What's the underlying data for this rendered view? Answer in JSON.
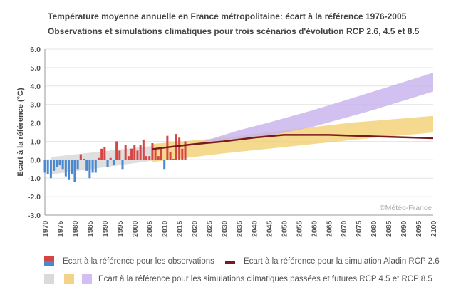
{
  "title": "Température moyenne annuelle en France métropolitaine: écart à la référence 1976-2005",
  "subtitle": "Observations et simulations climatiques pour trois scénarios d'évolution RCP 2.6, 4.5 et 8.5",
  "watermark": "©Météo-France",
  "legend": {
    "observations": "Ecart à la référence pour les observations",
    "aladin": "Ecart à la référence pour la simulation Aladin RCP 2.6",
    "simulations": "Ecart à la référence pour les simulations climatiques passées et futures RCP 4.5 et RCP 8.5"
  },
  "colors": {
    "positive": "#d64545",
    "negative": "#4a88d0",
    "grey_band": "#d9d9d9",
    "rcp45": "#f3cf73",
    "rcp85": "#c7b0ee",
    "line": "#7b1a1a"
  },
  "chart_data": {
    "type": "bar+line+area",
    "ylabel": "Ecart à la référence (°C)",
    "xlabel": "",
    "xlim": [
      1970,
      2100
    ],
    "ylim": [
      -3.0,
      6.0
    ],
    "yticks": [
      "6.0",
      "5.0",
      "4.0",
      "3.0",
      "2.0",
      "1.0",
      "0.0",
      "-1.0",
      "-2.0",
      "-3.0"
    ],
    "xticks": [
      "1970",
      "1975",
      "1980",
      "1985",
      "1990",
      "1995",
      "2000",
      "2005",
      "2010",
      "2015",
      "2020",
      "2025",
      "2030",
      "2035",
      "2040",
      "2045",
      "2050",
      "2055",
      "2060",
      "2065",
      "2070",
      "2075",
      "2080",
      "2085",
      "2090",
      "2095",
      "2100"
    ],
    "grid": true,
    "observations": {
      "years": [
        1970,
        1971,
        1972,
        1973,
        1974,
        1975,
        1976,
        1977,
        1978,
        1979,
        1980,
        1981,
        1982,
        1983,
        1984,
        1985,
        1986,
        1987,
        1988,
        1989,
        1990,
        1991,
        1992,
        1993,
        1994,
        1995,
        1996,
        1997,
        1998,
        1999,
        2000,
        2001,
        2002,
        2003,
        2004,
        2005,
        2006,
        2007,
        2008,
        2009,
        2010,
        2011,
        2012,
        2013,
        2014,
        2015,
        2016,
        2017
      ],
      "values": [
        -0.7,
        -0.8,
        -1.0,
        -0.6,
        -0.4,
        -0.3,
        -0.5,
        -0.9,
        -1.1,
        -0.8,
        -1.2,
        -0.5,
        0.3,
        0.05,
        -0.6,
        -1.0,
        -0.7,
        -0.7,
        0.1,
        0.6,
        0.7,
        -0.4,
        0.1,
        -0.3,
        1.0,
        0.5,
        -0.5,
        0.8,
        0.2,
        0.6,
        0.8,
        0.5,
        0.8,
        1.1,
        0.2,
        0.2,
        0.9,
        0.6,
        0.2,
        0.6,
        -0.5,
        1.3,
        0.4,
        0.05,
        1.4,
        1.2,
        0.6,
        1.0
      ]
    },
    "bands": [
      {
        "name": "past simulations",
        "x": [
          1972,
          2006
        ],
        "low": [
          -0.8,
          -0.05
        ],
        "high": [
          0.15,
          0.75
        ]
      },
      {
        "name": "RCP 4.5",
        "x": [
          2006,
          2030,
          2045,
          2073,
          2100
        ],
        "low": [
          -0.12,
          0.35,
          0.6,
          1.08,
          1.48
        ],
        "high": [
          0.86,
          1.2,
          1.5,
          2.02,
          2.38
        ]
      },
      {
        "name": "RCP 8.5",
        "x": [
          2022,
          2035,
          2045,
          2060,
          2080,
          2100
        ],
        "low": [
          0.85,
          1.1,
          1.3,
          1.8,
          2.7,
          3.7
        ],
        "high": [
          0.95,
          1.6,
          2.02,
          2.7,
          3.7,
          4.72
        ]
      }
    ],
    "line": {
      "name": "Aladin RCP 2.6",
      "x": [
        2006,
        2020,
        2030,
        2040,
        2050,
        2065,
        2080,
        2100
      ],
      "y": [
        0.58,
        0.85,
        1.0,
        1.2,
        1.35,
        1.35,
        1.27,
        1.17
      ]
    }
  }
}
